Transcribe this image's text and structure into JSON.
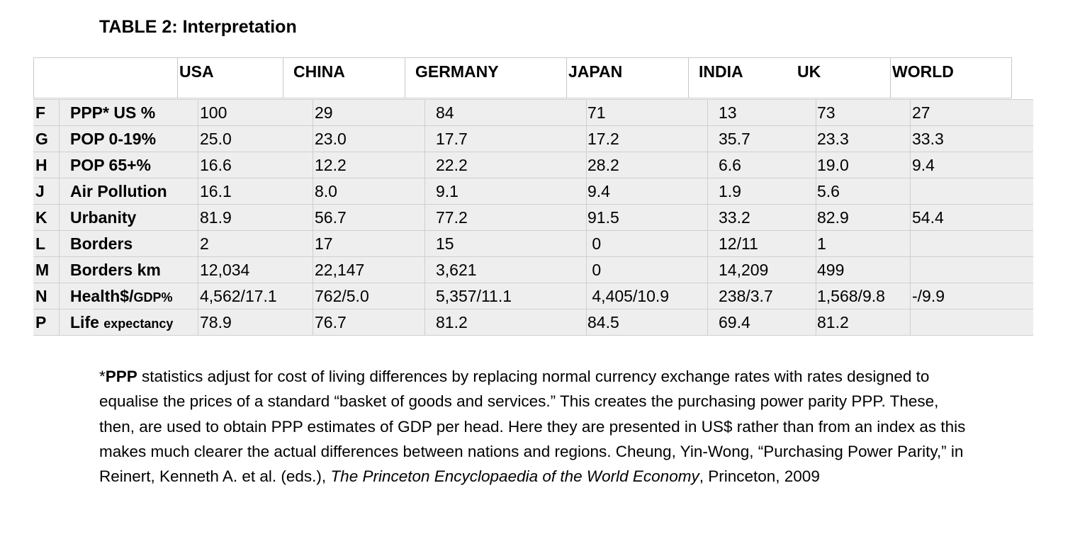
{
  "title": "TABLE 2: Interpretation",
  "columns": [
    "USA",
    "CHINA",
    "GERMANY",
    "JAPAN",
    "INDIA",
    "UK",
    "WORLD"
  ],
  "rows": [
    {
      "letter": "F",
      "label": "PPP* US %",
      "label_small": "",
      "values": [
        "100",
        "29",
        "84",
        "71",
        "13",
        "73",
        "27"
      ]
    },
    {
      "letter": "G",
      "label": "POP 0-19%",
      "label_small": "",
      "values": [
        "25.0",
        "23.0",
        "17.7",
        "17.2",
        "35.7",
        "23.3",
        "33.3"
      ]
    },
    {
      "letter": "H",
      "label": "POP 65+%",
      "label_small": "",
      "values": [
        "16.6",
        "12.2",
        "22.2",
        "28.2",
        "6.6",
        "19.0",
        "9.4"
      ]
    },
    {
      "letter": "J",
      "label": "Air Pollution",
      "label_small": "",
      "values": [
        "16.1",
        "8.0",
        "9.1",
        "9.4",
        "1.9",
        "5.6",
        ""
      ]
    },
    {
      "letter": "K",
      "label": "Urbanity",
      "label_small": "",
      "values": [
        "81.9",
        "56.7",
        "77.2",
        "91.5",
        "33.2",
        "82.9",
        "54.4"
      ]
    },
    {
      "letter": "L",
      "label": "Borders",
      "label_small": "",
      "values": [
        "2",
        "17",
        "15",
        " 0",
        "12/11",
        "1",
        ""
      ]
    },
    {
      "letter": "M",
      "label": "Borders km",
      "label_small": "",
      "values": [
        "12,034",
        "22,147",
        "3,621",
        " 0",
        "14,209",
        "499",
        ""
      ]
    },
    {
      "letter": "N",
      "label": "Health$/",
      "label_small": "GDP%",
      "values": [
        "4,562/17.1",
        "762/5.0",
        "5,357/11.1",
        " 4,405/10.9",
        "238/3.7",
        "1,568/9.8",
        "-/9.9"
      ]
    },
    {
      "letter": "P",
      "label": "Life ",
      "label_small": "expectancy",
      "values": [
        "78.9",
        "76.7",
        "81.2",
        "84.5",
        "69.4",
        "81.2",
        ""
      ]
    }
  ],
  "note": {
    "star": "*",
    "ppp_bold": "PPP",
    "text1": " statistics adjust for cost of living differences by replacing normal currency exchange rates with rates designed to equalise the prices of a standard “basket of goods and services.” This creates the purchasing power parity PPP. These, then, are used to obtain PPP estimates of GDP per head. Here they are presented in US$ rather than from an index as this makes much clearer the actual differences between nations and regions. Cheung, Yin-Wong, “Purchasing Power Parity,” in Reinert, Kenneth A. et al. (eds.), ",
    "book_italic": "The Princeton Encyclopaedia of the World Economy",
    "text2": ", Princeton, 2009"
  }
}
